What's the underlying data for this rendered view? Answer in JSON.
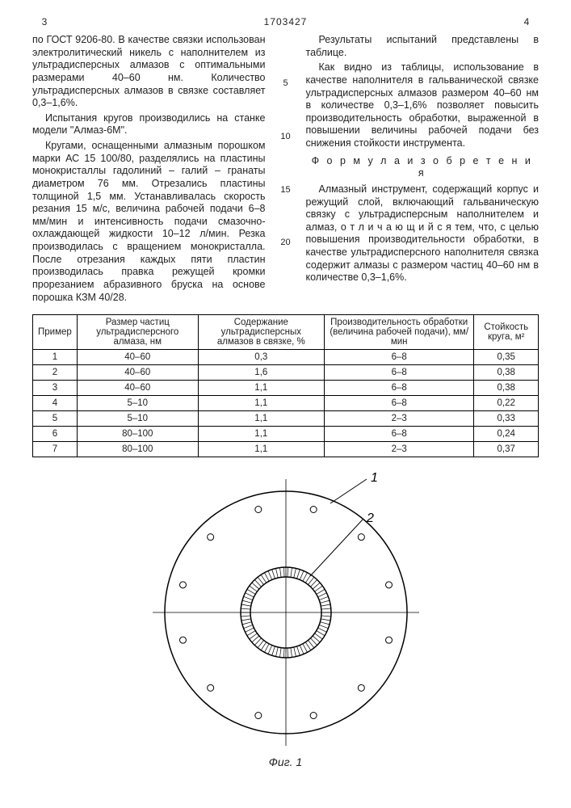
{
  "header": {
    "pageLeft": "3",
    "docId": "1703427",
    "pageRight": "4"
  },
  "leftCol": {
    "p1": "по ГОСТ 9206-80. В качестве связки использован электролитический никель с наполнителем из ультрадисперсных алмазов с оптимальными размерами 40–60 нм. Количество ультрадисперсных алмазов в связке составляет 0,3–1,6%.",
    "p2": "Испытания кругов производились на станке модели \"Алмаз-6М\".",
    "p3": "Кругами, оснащенными алмазным порошком марки АС 15 100/80, разделялись на пластины монокристаллы гадолиний – галий – гранаты диаметром 76 мм. Отрезались пластины толщиной 1,5 мм. Устанавливалась скорость резания 15 м/с, величина рабочей подачи 6–8 мм/мин и интенсивность подачи смазочно-охлаждающей жидкости 10–12 л/мин. Резка производилась с вращением монокристалла. После отрезания каждых пяти пластин производилась правка режущей кромки прорезанием абразивного бруска на основе порошка КЗМ 40/28."
  },
  "rightCol": {
    "p1": "Результаты испытаний представлены в таблице.",
    "p2": "Как видно из таблицы, использование в качестве наполнителя в гальванической связке ультрадисперсных алмазов размером 40–60 нм в количестве 0,3–1,6% позволяет повысить производительность обработки, выраженной в повышении величины рабочей подачи без снижения стойкости инструмента.",
    "formulaTitle": "Ф о р м у л а  и з о б р е т е н и я",
    "p3": "Алмазный инструмент, содержащий корпус и режущий слой, включающий гальваническую связку с ультрадисперсным наполнителем и алмаз, о т л и ч а ю щ и й с я тем, что, с целью повышения производительности обработки, в качестве ультрадисперсного наполнителя связка содержит алмазы с размером частиц 40–60 нм в количестве 0,3–1,6%."
  },
  "markers": [
    "5",
    "10",
    "15",
    "20"
  ],
  "table": {
    "headers": [
      "Пример",
      "Размер частиц ультрадисперсного алмаза, нм",
      "Содержание ультрадисперсных алмазов в связке, %",
      "Производительность обработки (величина рабочей подачи), мм/мин",
      "Стойкость круга, м²"
    ],
    "rows": [
      [
        "1",
        "40–60",
        "0,3",
        "6–8",
        "0,35"
      ],
      [
        "2",
        "40–60",
        "1,6",
        "6–8",
        "0,38"
      ],
      [
        "3",
        "40–60",
        "1,1",
        "6–8",
        "0,38"
      ],
      [
        "4",
        "5–10",
        "1,1",
        "6–8",
        "0,22"
      ],
      [
        "5",
        "5–10",
        "1,1",
        "2–3",
        "0,33"
      ],
      [
        "6",
        "80–100",
        "1,1",
        "6–8",
        "0,24"
      ],
      [
        "7",
        "80–100",
        "1,1",
        "2–3",
        "0,37"
      ]
    ]
  },
  "figure": {
    "label1": "1",
    "label2": "2",
    "caption": "Фиг. 1",
    "outerRadius": 150,
    "innerOuter": 56,
    "innerInner": 44,
    "holeCount": 12,
    "holeRadius": 4,
    "holeRingRadius": 132,
    "background": "#ffffff",
    "stroke": "#000000"
  }
}
